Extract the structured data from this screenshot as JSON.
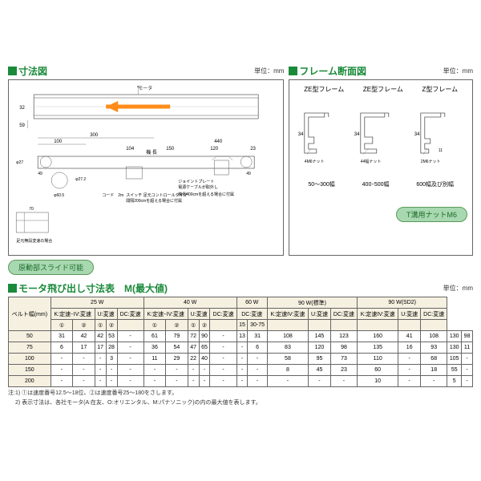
{
  "sections": {
    "dim": {
      "title": "寸法図",
      "unit": "単位：mm"
    },
    "frame": {
      "title": "フレーム断面図",
      "unit": "単位：mm"
    },
    "table": {
      "title": "モータ飛び出し寸法表　M(最大値)",
      "unit": "単位：mm"
    }
  },
  "badges": {
    "slide": "原動部スライド可能",
    "tnut": "T溝用ナットM6"
  },
  "frame": {
    "labels": [
      "ZE型フレーム",
      "ZE型フレーム",
      "Z型フレーム"
    ],
    "widths": [
      "50～300幅",
      "400･500幅",
      "600幅及び別幅"
    ],
    "dims": [
      "34",
      "34",
      "34"
    ],
    "nuts": [
      "4M6ナット",
      "44幅ナット",
      "2M6ナット"
    ]
  },
  "table": {
    "w_groups": [
      "25 W",
      "40 W",
      "60 W",
      "90 W(標準)",
      "90 W(SD2)"
    ],
    "sub_25": [
      "K:定速･IV:変速",
      "U:変速",
      "DC:変速"
    ],
    "sub_40": [
      "K:定速･IV:変速",
      "U:変速",
      "DC:変速"
    ],
    "sub_60": [
      "DC:変速"
    ],
    "sub_90": [
      "K:定速IV:変速",
      "U:変速",
      "DC:変速"
    ],
    "sub_90s": [
      "K:定速IV:変速",
      "U:変速",
      "DC:変速"
    ],
    "circles": [
      "①",
      "②",
      "①",
      "②",
      "",
      "①",
      "②",
      "①",
      "②",
      "",
      "15",
      "30-75",
      "",
      "",
      "",
      "",
      "",
      ""
    ],
    "belt_label": "ベルト幅(mm)",
    "rows": [
      {
        "w": "50",
        "v": [
          "31",
          "42",
          "42",
          "53",
          "-",
          "61",
          "79",
          "72",
          "90",
          "-",
          "13",
          "31",
          "108",
          "145",
          "123",
          "160",
          "41",
          "108",
          "130",
          "98"
        ]
      },
      {
        "w": "75",
        "v": [
          "6",
          "17",
          "17",
          "28",
          "-",
          "36",
          "54",
          "47",
          "65",
          "-",
          "-",
          "6",
          "83",
          "120",
          "98",
          "135",
          "16",
          "93",
          "130",
          "11"
        ]
      },
      {
        "w": "100",
        "v": [
          "-",
          "-",
          "-",
          "3",
          "-",
          "11",
          "29",
          "22",
          "40",
          "-",
          "-",
          "-",
          "58",
          "95",
          "73",
          "110",
          "-",
          "68",
          "105",
          "-"
        ]
      },
      {
        "w": "150",
        "v": [
          "-",
          "-",
          "-",
          "-",
          "-",
          "-",
          "-",
          "-",
          "-",
          "-",
          "-",
          "-",
          "8",
          "45",
          "23",
          "60",
          "-",
          "18",
          "55",
          "-"
        ]
      },
      {
        "w": "200",
        "v": [
          "-",
          "-",
          "-",
          "-",
          "-",
          "-",
          "-",
          "-",
          "-",
          "-",
          "-",
          "-",
          "-",
          "-",
          "-",
          "10",
          "-",
          "-",
          "5",
          "-"
        ]
      }
    ]
  },
  "notes": {
    "n1": "注:1) ①は速度番号12.5～18位、②は速度番号25～180をさします。",
    "n2": "　 2) 表示寸法は、各社モータ(A:在友、O:オリエンタル、M:パナソニック)の内の最大値を表します。"
  },
  "dim_labels": {
    "motor": "モータ",
    "d27": "φ27",
    "d32": "32",
    "d605": "φ60.5",
    "l100": "100",
    "l300": "300",
    "l104": "104",
    "l150": "150",
    "l120": "120",
    "l440": "440",
    "l23": "23",
    "l49l": "49",
    "l49r": "49",
    "d272": "φ27.2",
    "cord": "コード　2m",
    "switch": "スイッチ 足元コントロールタイプ",
    "note1": "電源ケーブルが取外し",
    "note2": "間隔200cmを超える場合に付属",
    "plate": "ジョイントプレート",
    "gap": "機長400cmを超える場合に付属",
    "l70": "70",
    "sw_note": "足元無段変速の場合"
  },
  "colors": {
    "green": "#1a8a3a",
    "badge_bg": "#a8d8b0",
    "badge_bd": "#5a9a5a",
    "line": "#555",
    "arrow": "#ff8c1a",
    "hdr_bg": "#f5f0e0"
  }
}
